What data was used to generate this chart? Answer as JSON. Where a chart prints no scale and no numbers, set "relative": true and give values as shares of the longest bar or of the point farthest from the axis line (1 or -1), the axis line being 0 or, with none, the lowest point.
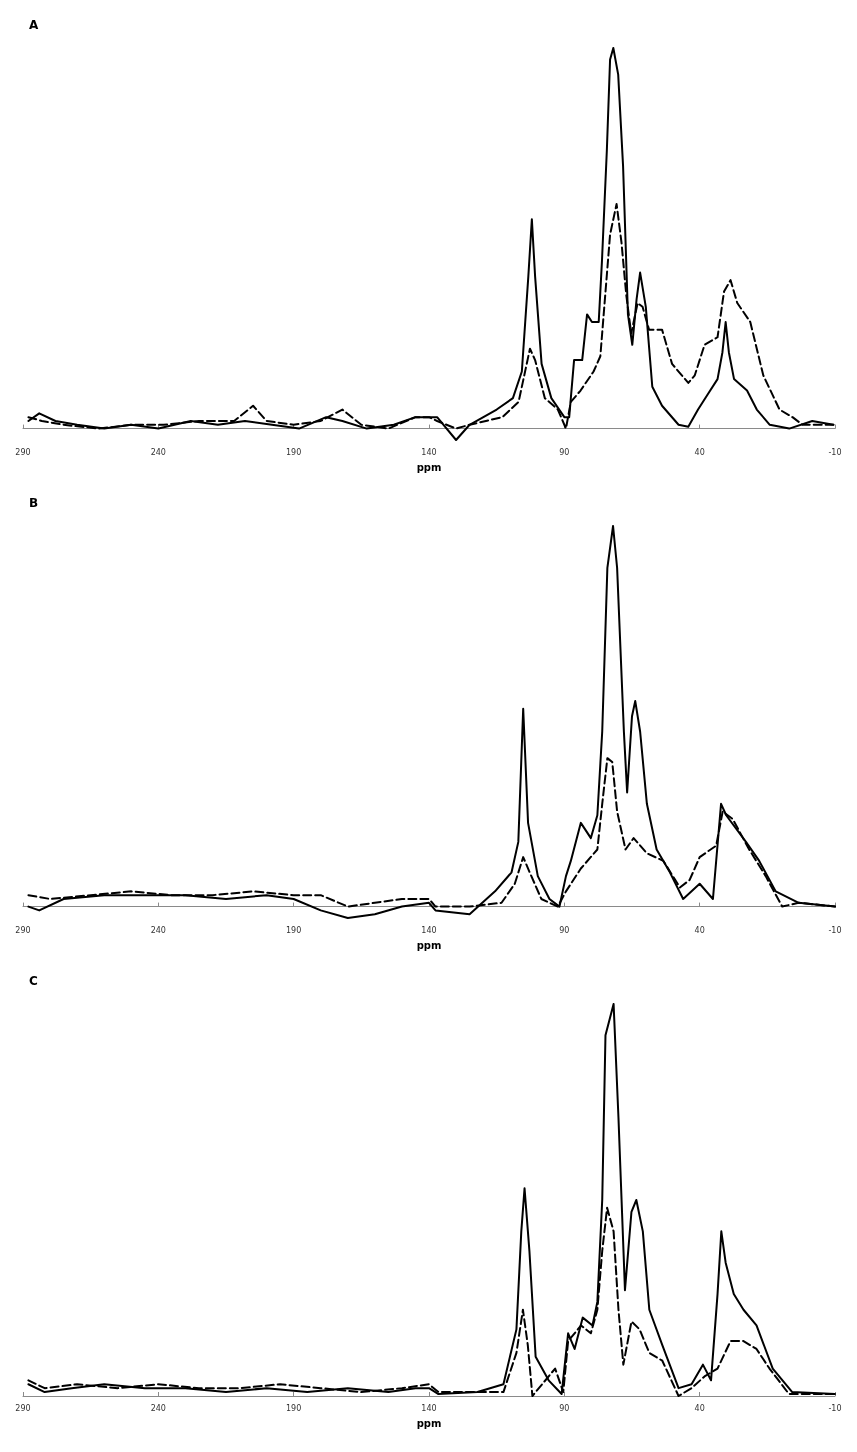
{
  "chart_data": [
    {
      "type": "line",
      "title": "A",
      "xlabel": "ppm",
      "relative": true,
      "xlim": [
        290,
        -10
      ],
      "xticks": [
        290,
        240,
        190,
        140,
        90,
        40,
        -10
      ],
      "grid": false,
      "marker": "none",
      "tick_labels": "x",
      "series": [
        {
          "color": "#000000",
          "line_style": "solid",
          "x": [
            288,
            284,
            278,
            270,
            260,
            250,
            240,
            228,
            218,
            208,
            198,
            188,
            178,
            172,
            163,
            153,
            145,
            137,
            130,
            125,
            115,
            109,
            105.7,
            103.3,
            102,
            100.8,
            98.4,
            94.8,
            90,
            88.2,
            86.4,
            83.4,
            81.6,
            79.8,
            77.3,
            76.1,
            74.3,
            73.1,
            71.9,
            70.1,
            68.3,
            66.5,
            64.9,
            63.3,
            62,
            59.9,
            57.5,
            53.9,
            47.8,
            44.2,
            40.6,
            37,
            33.4,
            31.6,
            30.4,
            29.2,
            27.3,
            22.5,
            18.9,
            14.1,
            6.9,
            -1.6,
            -9.4
          ],
          "values": [
            0.02,
            0.04,
            0.02,
            0.01,
            0,
            0.01,
            0,
            0.02,
            0.01,
            0.02,
            0.01,
            0,
            0.03,
            0.02,
            0,
            0.01,
            0.03,
            0.03,
            -0.03,
            0.01,
            0.05,
            0.08,
            0.15,
            0.4,
            0.55,
            0.4,
            0.17,
            0.08,
            0.03,
            0.03,
            0.18,
            0.18,
            0.3,
            0.28,
            0.28,
            0.44,
            0.73,
            0.97,
            1,
            0.93,
            0.69,
            0.3,
            0.22,
            0.34,
            0.41,
            0.32,
            0.11,
            0.06,
            0.01,
            0.005,
            0.05,
            0.09,
            0.13,
            0.2,
            0.28,
            0.2,
            0.13,
            0.1,
            0.05,
            0.01,
            0,
            0.02,
            0.01
          ]
        },
        {
          "color": "#000000",
          "line_style": "dashed",
          "x": [
            288,
            283,
            275,
            262,
            250,
            238,
            225,
            212,
            205,
            200,
            190,
            180,
            172,
            165,
            155,
            145,
            140,
            137,
            130,
            125,
            112.9,
            106.9,
            104.5,
            102.7,
            100.8,
            97.2,
            92.4,
            89.4,
            87.6,
            84,
            79.2,
            76.7,
            74.9,
            73.1,
            70.7,
            68.9,
            67.1,
            65.3,
            62.9,
            61.1,
            58.7,
            53.9,
            50.2,
            44.2,
            41.8,
            38.2,
            33.4,
            31,
            28.6,
            26.1,
            21.3,
            16.5,
            10.5,
            5.7,
            2,
            -9.4
          ],
          "values": [
            0.03,
            0.02,
            0.01,
            0,
            0.01,
            0.01,
            0.02,
            0.02,
            0.06,
            0.02,
            0.01,
            0.02,
            0.05,
            0.01,
            0,
            0.03,
            0.03,
            0.02,
            0,
            0.01,
            0.03,
            0.07,
            0.15,
            0.21,
            0.18,
            0.08,
            0.05,
            0,
            0.07,
            0.1,
            0.15,
            0.19,
            0.35,
            0.51,
            0.59,
            0.49,
            0.35,
            0.25,
            0.33,
            0.32,
            0.26,
            0.26,
            0.17,
            0.12,
            0.14,
            0.22,
            0.24,
            0.36,
            0.39,
            0.33,
            0.28,
            0.14,
            0.05,
            0.03,
            0.01,
            0.01
          ]
        }
      ]
    },
    {
      "type": "line",
      "title": "B",
      "xlabel": "ppm",
      "relative": true,
      "xlim": [
        290,
        -10
      ],
      "xticks": [
        290,
        240,
        190,
        140,
        90,
        40,
        -10
      ],
      "grid": false,
      "marker": "none",
      "tick_labels": "x",
      "series": [
        {
          "color": "#000000",
          "line_style": "solid",
          "x": [
            288,
            284,
            275,
            260,
            245,
            230,
            215,
            200,
            190,
            180,
            170,
            160,
            150,
            140,
            137.6,
            125,
            115.6,
            109.5,
            107,
            105.2,
            103.4,
            99.8,
            95.5,
            91.8,
            89.4,
            87.6,
            83.9,
            80.2,
            77.8,
            76,
            74.1,
            72,
            70.5,
            68,
            66.8,
            65,
            63.8,
            62,
            59.5,
            55.9,
            51,
            46.1,
            40,
            35.1,
            33.3,
            32.1,
            30.2,
            22.9,
            18,
            11.9,
            3.4,
            -10
          ],
          "values": [
            0,
            -0.01,
            0.02,
            0.03,
            0.03,
            0.03,
            0.02,
            0.03,
            0.02,
            -0.01,
            -0.03,
            -0.02,
            0,
            0.01,
            -0.01,
            -0.02,
            0.04,
            0.09,
            0.17,
            0.52,
            0.22,
            0.08,
            0.02,
            0,
            0.08,
            0.12,
            0.22,
            0.18,
            0.24,
            0.46,
            0.89,
            1,
            0.89,
            0.46,
            0.3,
            0.5,
            0.54,
            0.46,
            0.27,
            0.15,
            0.09,
            0.02,
            0.06,
            0.02,
            0.17,
            0.27,
            0.24,
            0.17,
            0.12,
            0.04,
            0.01,
            0
          ]
        },
        {
          "color": "#000000",
          "line_style": "dashed",
          "x": [
            288,
            280,
            265,
            250,
            235,
            220,
            205,
            190,
            180,
            170,
            160,
            150,
            140,
            137.6,
            125,
            113.2,
            108.3,
            105.2,
            102.8,
            98.5,
            92.4,
            89.4,
            83.9,
            77.8,
            76,
            74.1,
            72.3,
            70.5,
            67.4,
            64.4,
            59.5,
            53.4,
            47.3,
            43.7,
            40,
            33.9,
            31.5,
            27.8,
            21.7,
            15.6,
            9.5,
            3.4,
            -10
          ],
          "values": [
            0.03,
            0.02,
            0.03,
            0.04,
            0.03,
            0.03,
            0.04,
            0.03,
            0.03,
            0,
            0.01,
            0.02,
            0.02,
            0,
            0,
            0.01,
            0.06,
            0.13,
            0.09,
            0.02,
            0,
            0.04,
            0.1,
            0.15,
            0.27,
            0.39,
            0.38,
            0.25,
            0.15,
            0.18,
            0.14,
            0.12,
            0.05,
            0.07,
            0.13,
            0.16,
            0.25,
            0.23,
            0.15,
            0.08,
            0,
            0.01,
            0
          ]
        }
      ]
    },
    {
      "type": "line",
      "title": "C",
      "xlabel": "ppm",
      "relative": true,
      "xlim": [
        290,
        -10
      ],
      "xticks": [
        290,
        240,
        190,
        140,
        90,
        40,
        -10
      ],
      "grid": false,
      "marker": "none",
      "tick_labels": "x",
      "series": [
        {
          "color": "#000000",
          "line_style": "solid",
          "x": [
            288,
            282,
            272,
            260,
            245,
            230,
            215,
            200,
            185,
            170,
            155,
            145,
            140,
            136.5,
            122.1,
            112.5,
            107.7,
            105.9,
            104.7,
            102.9,
            100.6,
            95.8,
            91,
            88.6,
            86.2,
            83.2,
            79.6,
            77.8,
            76,
            74.8,
            71.8,
            70,
            67.6,
            65.2,
            63.4,
            61,
            58.6,
            53.8,
            47.8,
            43,
            38.8,
            35.8,
            33.4,
            32,
            30.4,
            27.4,
            23.8,
            19,
            13,
            5.8,
            -10
          ],
          "values": [
            0.03,
            0.01,
            0.02,
            0.03,
            0.02,
            0.02,
            0.01,
            0.02,
            0.01,
            0.02,
            0.01,
            0.02,
            0.02,
            0.005,
            0.01,
            0.03,
            0.17,
            0.42,
            0.53,
            0.37,
            0.1,
            0.04,
            0.005,
            0.16,
            0.12,
            0.2,
            0.18,
            0.24,
            0.5,
            0.92,
            1,
            0.71,
            0.27,
            0.47,
            0.5,
            0.42,
            0.22,
            0.13,
            0.02,
            0.03,
            0.08,
            0.04,
            0.26,
            0.42,
            0.34,
            0.26,
            0.22,
            0.18,
            0.07,
            0.01,
            0.005
          ]
        },
        {
          "color": "#000000",
          "line_style": "dashed",
          "x": [
            288,
            282,
            270,
            255,
            240,
            225,
            210,
            195,
            180,
            165,
            150,
            140,
            136.5,
            112.5,
            107.7,
            105.3,
            103.5,
            101.8,
            98.2,
            93.4,
            90.4,
            88.6,
            83.8,
            80.2,
            77.8,
            76,
            74.2,
            71.8,
            70,
            68.2,
            65.2,
            62.2,
            58.6,
            53.8,
            47.8,
            43,
            38.2,
            33.4,
            28.6,
            23.8,
            19,
            14.2,
            7,
            -10
          ],
          "values": [
            0.04,
            0.02,
            0.03,
            0.02,
            0.03,
            0.02,
            0.02,
            0.03,
            0.02,
            0.01,
            0.02,
            0.03,
            0.01,
            0.01,
            0.11,
            0.22,
            0.13,
            0,
            0.03,
            0.07,
            0.01,
            0.14,
            0.18,
            0.16,
            0.22,
            0.37,
            0.48,
            0.42,
            0.22,
            0.08,
            0.19,
            0.17,
            0.11,
            0.09,
            0,
            0.02,
            0.05,
            0.07,
            0.14,
            0.14,
            0.12,
            0.07,
            0.005,
            0.005
          ]
        }
      ]
    }
  ]
}
